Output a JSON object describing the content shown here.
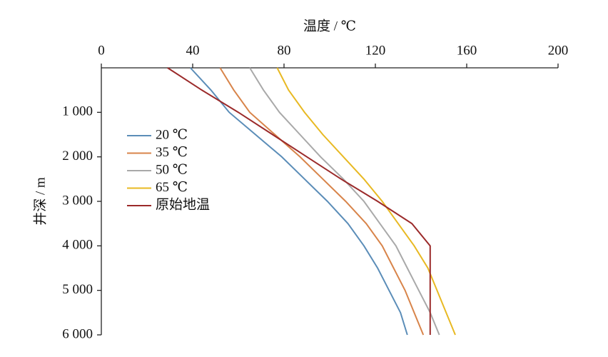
{
  "chart_data": {
    "type": "line",
    "x_label": "温度 / ℃",
    "y_label": "井深 / m",
    "xlim": [
      0,
      200
    ],
    "xticks": [
      0,
      40,
      80,
      120,
      160,
      200
    ],
    "ylim": [
      0,
      6000
    ],
    "yticks": [
      {
        "value": 1000,
        "label": "1 000"
      },
      {
        "value": 2000,
        "label": "2 000"
      },
      {
        "value": 3000,
        "label": "3 000"
      },
      {
        "value": 4000,
        "label": "4 000"
      },
      {
        "value": 5000,
        "label": "5 000"
      },
      {
        "value": 6000,
        "label": "6 000"
      }
    ],
    "y": [
      0,
      500,
      1000,
      1500,
      2000,
      2500,
      3000,
      3500,
      4000,
      4500,
      5000,
      5500,
      6000
    ],
    "series": [
      {
        "name": "20 ℃",
        "color": "#5b8db8",
        "values": [
          39,
          48,
          56,
          67.5,
          79,
          89,
          99,
          108,
          115,
          121,
          126,
          131,
          134
        ]
      },
      {
        "name": "35 ℃",
        "color": "#d8844a",
        "values": [
          52,
          58,
          65,
          76,
          87,
          97,
          107,
          116,
          123,
          128,
          133,
          137,
          141
        ]
      },
      {
        "name": "50 ℃",
        "color": "#a9a9a9",
        "values": [
          65,
          71,
          78,
          87,
          96,
          106,
          115,
          122,
          129,
          134,
          139,
          144,
          148
        ]
      },
      {
        "name": "65 ℃",
        "color": "#e8b923",
        "values": [
          77,
          82,
          89,
          97,
          106,
          115,
          123,
          130,
          137,
          143,
          147,
          151,
          155
        ]
      },
      {
        "name": "原始地温",
        "color": "#9b2a2a",
        "values": [
          29,
          44,
          60,
          75,
          90,
          105,
          121,
          136,
          144,
          144,
          144,
          144,
          144
        ]
      }
    ]
  }
}
